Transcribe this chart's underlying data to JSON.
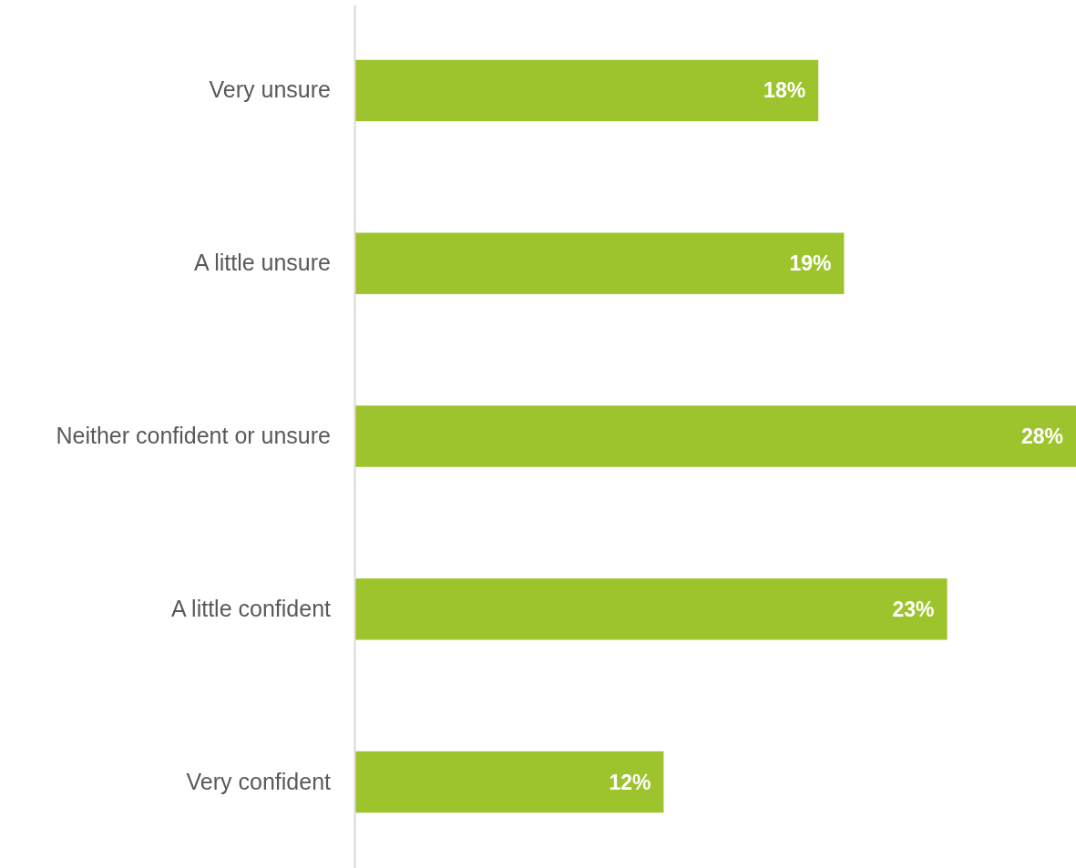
{
  "chart_data": {
    "type": "bar",
    "orientation": "horizontal",
    "categories": [
      "Very unsure",
      "A little unsure",
      "Neither confident or unsure",
      "A little confident",
      "Very confident"
    ],
    "values": [
      18,
      19,
      28,
      23,
      12
    ],
    "value_labels": [
      "18%",
      "19%",
      "28%",
      "23%",
      "12%"
    ],
    "color": "#9dc42c"
  }
}
